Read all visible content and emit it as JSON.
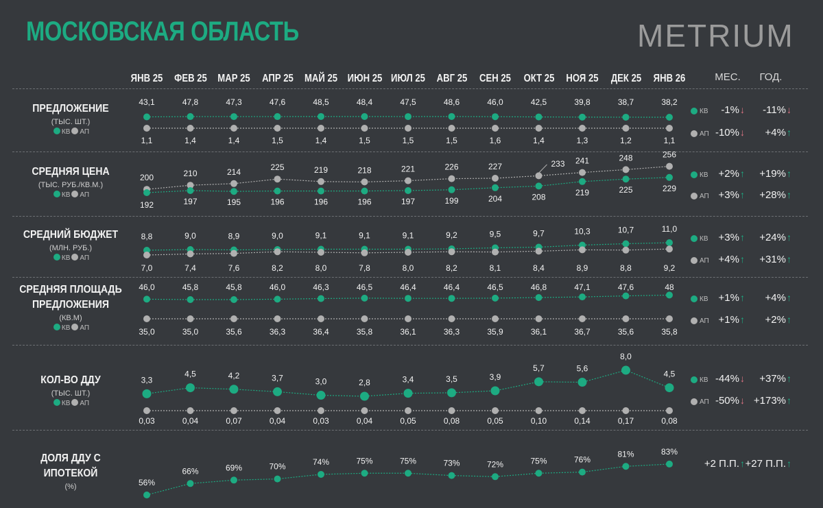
{
  "title": "МОСКОВСКАЯ ОБЛАСТЬ",
  "logo": "METRIUM",
  "months": [
    "ЯНВ 25",
    "ФЕВ 25",
    "МАР 25",
    "АПР 25",
    "МАЙ 25",
    "ИЮН 25",
    "ИЮЛ 25",
    "АВГ 25",
    "СЕН 25",
    "ОКТ 25",
    "НОЯ 25",
    "ДЕК 25",
    "ЯНВ 26"
  ],
  "col_month": "МЕС.",
  "col_year": "ГОД.",
  "legend_kv": "КВ",
  "legend_ap": "АП",
  "colors": {
    "kv": "#1dab82",
    "ap": "#b0b0b0",
    "up": "#1dab82",
    "down": "#e07585"
  },
  "rows": [
    {
      "title": "ПРЕДЛОЖЕНИЕ",
      "unit": "(ТЫС. ШТ.)",
      "kv": {
        "label": "КВ",
        "month_change": "-1%",
        "month_dir": "down",
        "year_change": "-11%",
        "year_dir": "down"
      },
      "ap": {
        "label": "АП",
        "month_change": "-10%",
        "month_dir": "down",
        "year_change": "+4%",
        "year_dir": "up"
      }
    },
    {
      "title": "СРЕДНЯЯ ЦЕНА",
      "unit": "(ТЫС. РУБ./КВ.М.)",
      "kv": {
        "label": "КВ",
        "month_change": "+2%",
        "month_dir": "up",
        "year_change": "+19%",
        "year_dir": "up"
      },
      "ap": {
        "label": "АП",
        "month_change": "+3%",
        "month_dir": "up",
        "year_change": "+28%",
        "year_dir": "up"
      }
    },
    {
      "title": "СРЕДНИЙ БЮДЖЕТ",
      "unit": "(МЛН. РУБ.)",
      "kv": {
        "label": "КВ",
        "month_change": "+3%",
        "month_dir": "up",
        "year_change": "+24%",
        "year_dir": "up"
      },
      "ap": {
        "label": "АП",
        "month_change": "+4%",
        "month_dir": "up",
        "year_change": "+31%",
        "year_dir": "up"
      }
    },
    {
      "title": "СРЕДНЯЯ ПЛОЩАДЬ",
      "title2": "ПРЕДЛОЖЕНИЯ",
      "unit": "(КВ.М)",
      "kv": {
        "label": "КВ",
        "month_change": "+1%",
        "month_dir": "up",
        "year_change": "+4%",
        "year_dir": "up"
      },
      "ap": {
        "label": "АП",
        "month_change": "+1%",
        "month_dir": "up",
        "year_change": "+2%",
        "year_dir": "up"
      }
    },
    {
      "title": "КОЛ-ВО ДДУ",
      "unit": "(ТЫС. ШТ.)",
      "kv": {
        "label": "КВ",
        "month_change": "-44%",
        "month_dir": "down",
        "year_change": "+37%",
        "year_dir": "up"
      },
      "ap": {
        "label": "АП",
        "month_change": "-50%",
        "month_dir": "down",
        "year_change": "+173%",
        "year_dir": "up"
      }
    },
    {
      "title": "ДОЛЯ ДДУ С",
      "title2": "ИПОТЕКОЙ",
      "unit": "(%)",
      "single": {
        "month_change": "+2 П.П.",
        "month_dir": "up",
        "year_change": "+27 П.П.",
        "year_dir": "up"
      }
    }
  ],
  "chart_data": [
    {
      "type": "line",
      "title": "ПРЕДЛОЖЕНИЕ",
      "categories": [
        "ЯНВ 25",
        "ФЕВ 25",
        "МАР 25",
        "АПР 25",
        "МАЙ 25",
        "ИЮН 25",
        "ИЮЛ 25",
        "АВГ 25",
        "СЕН 25",
        "ОКТ 25",
        "НОЯ 25",
        "ДЕК 25",
        "ЯНВ 26"
      ],
      "series": [
        {
          "name": "КВ",
          "labels": [
            "43,1",
            "47,8",
            "47,3",
            "47,6",
            "48,5",
            "48,4",
            "47,5",
            "48,6",
            "46,0",
            "42,5",
            "39,8",
            "38,7",
            "38,2"
          ],
          "values": [
            43.1,
            47.8,
            47.3,
            47.6,
            48.5,
            48.4,
            47.5,
            48.6,
            46.0,
            42.5,
            39.8,
            38.7,
            38.2
          ]
        },
        {
          "name": "АП",
          "labels": [
            "1,1",
            "1,4",
            "1,4",
            "1,5",
            "1,4",
            "1,5",
            "1,5",
            "1,5",
            "1,6",
            "1,4",
            "1,3",
            "1,2",
            "1,1"
          ],
          "values": [
            1.1,
            1.4,
            1.4,
            1.5,
            1.4,
            1.5,
            1.5,
            1.5,
            1.6,
            1.4,
            1.3,
            1.2,
            1.1
          ]
        }
      ]
    },
    {
      "type": "line",
      "title": "СРЕДНЯЯ ЦЕНА",
      "categories": [
        "ЯНВ 25",
        "ФЕВ 25",
        "МАР 25",
        "АПР 25",
        "МАЙ 25",
        "ИЮН 25",
        "ИЮЛ 25",
        "АВГ 25",
        "СЕН 25",
        "ОКТ 25",
        "НОЯ 25",
        "ДЕК 25",
        "ЯНВ 26"
      ],
      "series": [
        {
          "name": "КВ",
          "labels": [
            "192",
            "197",
            "195",
            "196",
            "196",
            "196",
            "197",
            "199",
            "204",
            "208",
            "219",
            "225",
            "229"
          ],
          "values": [
            192,
            197,
            195,
            196,
            196,
            196,
            197,
            199,
            204,
            208,
            219,
            225,
            229
          ]
        },
        {
          "name": "АП",
          "labels": [
            "200",
            "210",
            "214",
            "225",
            "219",
            "218",
            "221",
            "226",
            "227",
            "233",
            "241",
            "248",
            "256"
          ],
          "values": [
            200,
            210,
            214,
            225,
            219,
            218,
            221,
            226,
            227,
            233,
            241,
            248,
            256
          ]
        }
      ]
    },
    {
      "type": "line",
      "title": "СРЕДНИЙ БЮДЖЕТ",
      "categories": [
        "ЯНВ 25",
        "ФЕВ 25",
        "МАР 25",
        "АПР 25",
        "МАЙ 25",
        "ИЮН 25",
        "ИЮЛ 25",
        "АВГ 25",
        "СЕН 25",
        "ОКТ 25",
        "НОЯ 25",
        "ДЕК 25",
        "ЯНВ 26"
      ],
      "series": [
        {
          "name": "КВ",
          "labels": [
            "8,8",
            "9,0",
            "8,9",
            "9,0",
            "9,1",
            "9,1",
            "9,1",
            "9,2",
            "9,5",
            "9,7",
            "10,3",
            "10,7",
            "11,0"
          ],
          "values": [
            8.8,
            9.0,
            8.9,
            9.0,
            9.1,
            9.1,
            9.1,
            9.2,
            9.5,
            9.7,
            10.3,
            10.7,
            11.0
          ]
        },
        {
          "name": "АП",
          "labels": [
            "7,0",
            "7,4",
            "7,6",
            "8,2",
            "8,0",
            "7,8",
            "8,0",
            "8,2",
            "8,1",
            "8,4",
            "8,9",
            "8,8",
            "9,2"
          ],
          "values": [
            7.0,
            7.4,
            7.6,
            8.2,
            8.0,
            7.8,
            8.0,
            8.2,
            8.1,
            8.4,
            8.9,
            8.8,
            9.2
          ]
        }
      ]
    },
    {
      "type": "line",
      "title": "СРЕДНЯЯ ПЛОЩАДЬ ПРЕДЛОЖЕНИЯ",
      "categories": [
        "ЯНВ 25",
        "ФЕВ 25",
        "МАР 25",
        "АПР 25",
        "МАЙ 25",
        "ИЮН 25",
        "ИЮЛ 25",
        "АВГ 25",
        "СЕН 25",
        "ОКТ 25",
        "НОЯ 25",
        "ДЕК 25",
        "ЯНВ 26"
      ],
      "series": [
        {
          "name": "КВ",
          "labels": [
            "46,0",
            "45,8",
            "45,8",
            "46,0",
            "46,3",
            "46,5",
            "46,4",
            "46,4",
            "46,5",
            "46,8",
            "47,1",
            "47,6",
            "48"
          ],
          "values": [
            46.0,
            45.8,
            45.8,
            46.0,
            46.3,
            46.5,
            46.4,
            46.4,
            46.5,
            46.8,
            47.1,
            47.6,
            48.0
          ]
        },
        {
          "name": "АП",
          "labels": [
            "35,0",
            "35,0",
            "35,6",
            "36,3",
            "36,4",
            "35,8",
            "36,1",
            "36,3",
            "35,9",
            "36,1",
            "36,7",
            "35,6",
            "35,8"
          ],
          "values": [
            35.0,
            35.0,
            35.6,
            36.3,
            36.4,
            35.8,
            36.1,
            36.3,
            35.9,
            36.1,
            36.7,
            35.6,
            35.8
          ]
        }
      ]
    },
    {
      "type": "line",
      "title": "КОЛ-ВО ДДУ",
      "categories": [
        "ЯНВ 25",
        "ФЕВ 25",
        "МАР 25",
        "АПР 25",
        "МАЙ 25",
        "ИЮН 25",
        "ИЮЛ 25",
        "АВГ 25",
        "СЕН 25",
        "ОКТ 25",
        "НОЯ 25",
        "ДЕК 25",
        "ЯНВ 26"
      ],
      "series": [
        {
          "name": "КВ",
          "labels": [
            "3,3",
            "4,5",
            "4,2",
            "3,7",
            "3,0",
            "2,8",
            "3,4",
            "3,5",
            "3,9",
            "5,7",
            "5,6",
            "8,0",
            "4,5"
          ],
          "values": [
            3.3,
            4.5,
            4.2,
            3.7,
            3.0,
            2.8,
            3.4,
            3.5,
            3.9,
            5.7,
            5.6,
            8.0,
            4.5
          ]
        },
        {
          "name": "АП",
          "labels": [
            "0,03",
            "0,04",
            "0,07",
            "0,04",
            "0,03",
            "0,04",
            "0,05",
            "0,08",
            "0,05",
            "0,10",
            "0,14",
            "0,17",
            "0,08"
          ],
          "values": [
            0.03,
            0.04,
            0.07,
            0.04,
            0.03,
            0.04,
            0.05,
            0.08,
            0.05,
            0.1,
            0.14,
            0.17,
            0.08
          ]
        }
      ]
    },
    {
      "type": "line",
      "title": "ДОЛЯ ДДУ С ИПОТЕКОЙ",
      "categories": [
        "ЯНВ 25",
        "ФЕВ 25",
        "МАР 25",
        "АПР 25",
        "МАЙ 25",
        "ИЮН 25",
        "ИЮЛ 25",
        "АВГ 25",
        "СЕН 25",
        "ОКТ 25",
        "НОЯ 25",
        "ДЕК 25",
        "ЯНВ 26"
      ],
      "series": [
        {
          "labels": [
            "56%",
            "66%",
            "69%",
            "70%",
            "74%",
            "75%",
            "75%",
            "73%",
            "72%",
            "75%",
            "76%",
            "81%",
            "83%"
          ],
          "values": [
            56,
            66,
            69,
            70,
            74,
            75,
            75,
            73,
            72,
            75,
            76,
            81,
            83
          ]
        }
      ]
    }
  ]
}
